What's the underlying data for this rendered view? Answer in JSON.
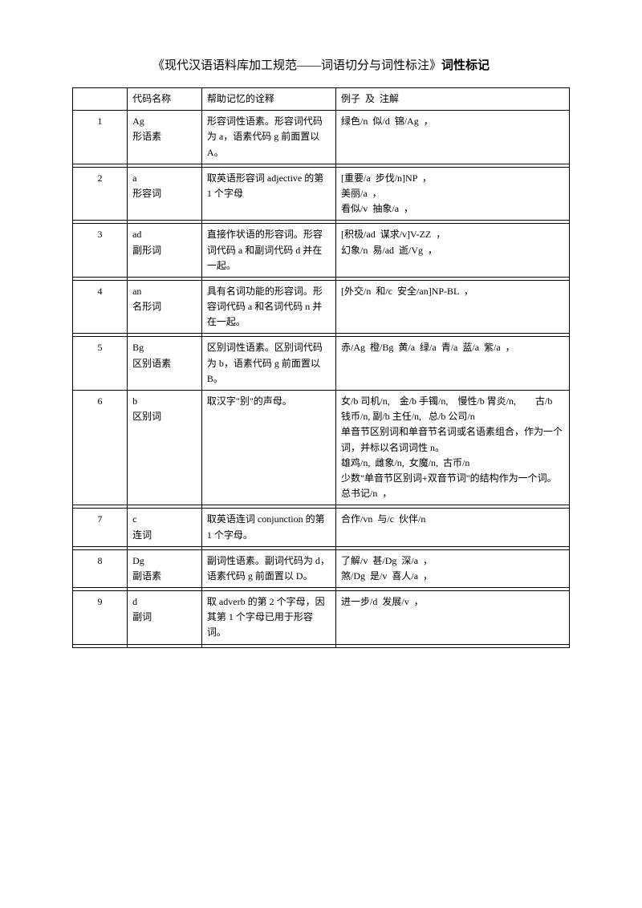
{
  "title": {
    "prefix": "《现代汉语语料库加工规范——词语切分与词性标注》",
    "bold": "词性标记"
  },
  "header": {
    "col1": "",
    "col2": "代码名称",
    "col3": "帮助记忆的诠释",
    "col4": "例子  及  注解"
  },
  "rows": [
    {
      "num": "1",
      "code": "Ag\n形语素",
      "desc": "形容词性语素。形容词代码为 a，语素代码 g 前面置以 A。",
      "example": "绿色/n  似/d  锦/Ag  ，"
    },
    {
      "num": "2",
      "code": "a\n形容词",
      "desc": "取英语形容词 adjective 的第 1 个字母",
      "example": "[重要/a  步伐/n]NP  ，\n美丽/a  ，\n看似/v  抽象/a  ，"
    },
    {
      "num": "3",
      "code": "ad\n副形词",
      "desc": "直接作状语的形容词。形容词代码 a 和副词代码 d 并在一起。",
      "example": "[积极/ad  谋求/v]V-ZZ  ，\n幻象/n  易/ad  逝/Vg  ，"
    },
    {
      "num": "4",
      "code": "an\n名形词",
      "desc": "具有名词功能的形容词。形容词代码 a 和名词代码 n 并在一起。",
      "example": "[外交/n  和/c  安全/an]NP-BL  ，"
    },
    {
      "num": "5",
      "code": "Bg\n区别语素",
      "desc": "区别词性语素。区别词代码为 b，语素代码 g 前面置以 B。",
      "example": "赤/Ag  橙/Bg  黄/a  绿/a  青/a  蓝/a  紫/a  ，"
    },
    {
      "num": "6",
      "code": "b\n区别词",
      "desc": "取汉字\"别\"的声母。",
      "example": "女/b 司机/n,    金/b 手镯/n,    慢性/b 胃炎/n,        古/b      钱币/n, 副/b 主任/n,   总/b 公司/n\n单音节区别词和单音节名词或名语素组合，作为一个词，并标以名词词性 n。\n雄鸡/n,  雌象/n,  女魔/n,  古币/n\n少数\"单音节区别词+双音节词\"的结构作为一个词。\n总书记/n  ，"
    },
    {
      "num": "7",
      "code": "c\n连词",
      "desc": "取英语连词 conjunction 的第 1 个字母。",
      "example": "合作/vn  与/c  伙伴/n"
    },
    {
      "num": "8",
      "code": "Dg\n副语素",
      "desc": "副词性语素。副词代码为 d，语素代码 g 前面置以 D。",
      "example": "了解/v  甚/Dg  深/a  ，\n煞/Dg  是/v  喜人/a  ，"
    },
    {
      "num": "9",
      "code": "d\n副词",
      "desc": "取 adverb 的第 2 个字母，因其第 1 个字母已用于形容词。",
      "example": "进一步/d  发展/v  ，"
    }
  ]
}
